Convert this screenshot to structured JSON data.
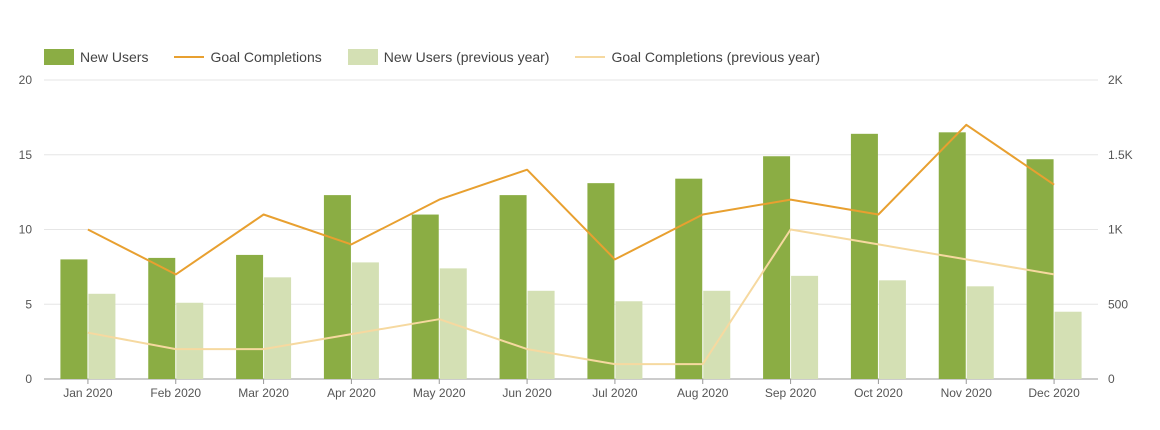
{
  "chart_data": {
    "type": "bar",
    "categories": [
      "Jan 2020",
      "Feb 2020",
      "Mar 2020",
      "Apr 2020",
      "May 2020",
      "Jun 2020",
      "Jul 2020",
      "Aug 2020",
      "Sep 2020",
      "Oct 2020",
      "Nov 2020",
      "Dec 2020"
    ],
    "series": [
      {
        "name": "New Users",
        "type": "bar",
        "axis": "left",
        "color": "#8bad44",
        "values": [
          8.0,
          8.1,
          8.3,
          12.3,
          11.0,
          12.3,
          13.1,
          13.4,
          14.9,
          16.4,
          16.5,
          14.7
        ]
      },
      {
        "name": "Goal Completions",
        "type": "line",
        "axis": "right",
        "color": "#e8a030",
        "values": [
          1000,
          700,
          1100,
          900,
          1200,
          1400,
          800,
          1100,
          1200,
          1100,
          1700,
          1300
        ]
      },
      {
        "name": "New Users (previous year)",
        "type": "bar",
        "axis": "left",
        "color": "#d4e0b4",
        "values": [
          5.7,
          5.1,
          6.8,
          7.8,
          7.4,
          5.9,
          5.2,
          5.9,
          6.9,
          6.6,
          6.2,
          4.5
        ]
      },
      {
        "name": "Goal Completions (previous year)",
        "type": "line",
        "axis": "right",
        "color": "#f6d9a0",
        "values": [
          310,
          200,
          200,
          300,
          400,
          200,
          100,
          100,
          1000,
          900,
          800,
          700
        ]
      }
    ],
    "y_left": {
      "min": 0,
      "max": 20,
      "ticks": [
        "0",
        "5",
        "10",
        "15",
        "20"
      ]
    },
    "y_right": {
      "min": 0,
      "max": 2000,
      "ticks": [
        "0",
        "500",
        "1K",
        "1.5K",
        "2K"
      ]
    },
    "grid": true,
    "legend_position": "top-left"
  }
}
